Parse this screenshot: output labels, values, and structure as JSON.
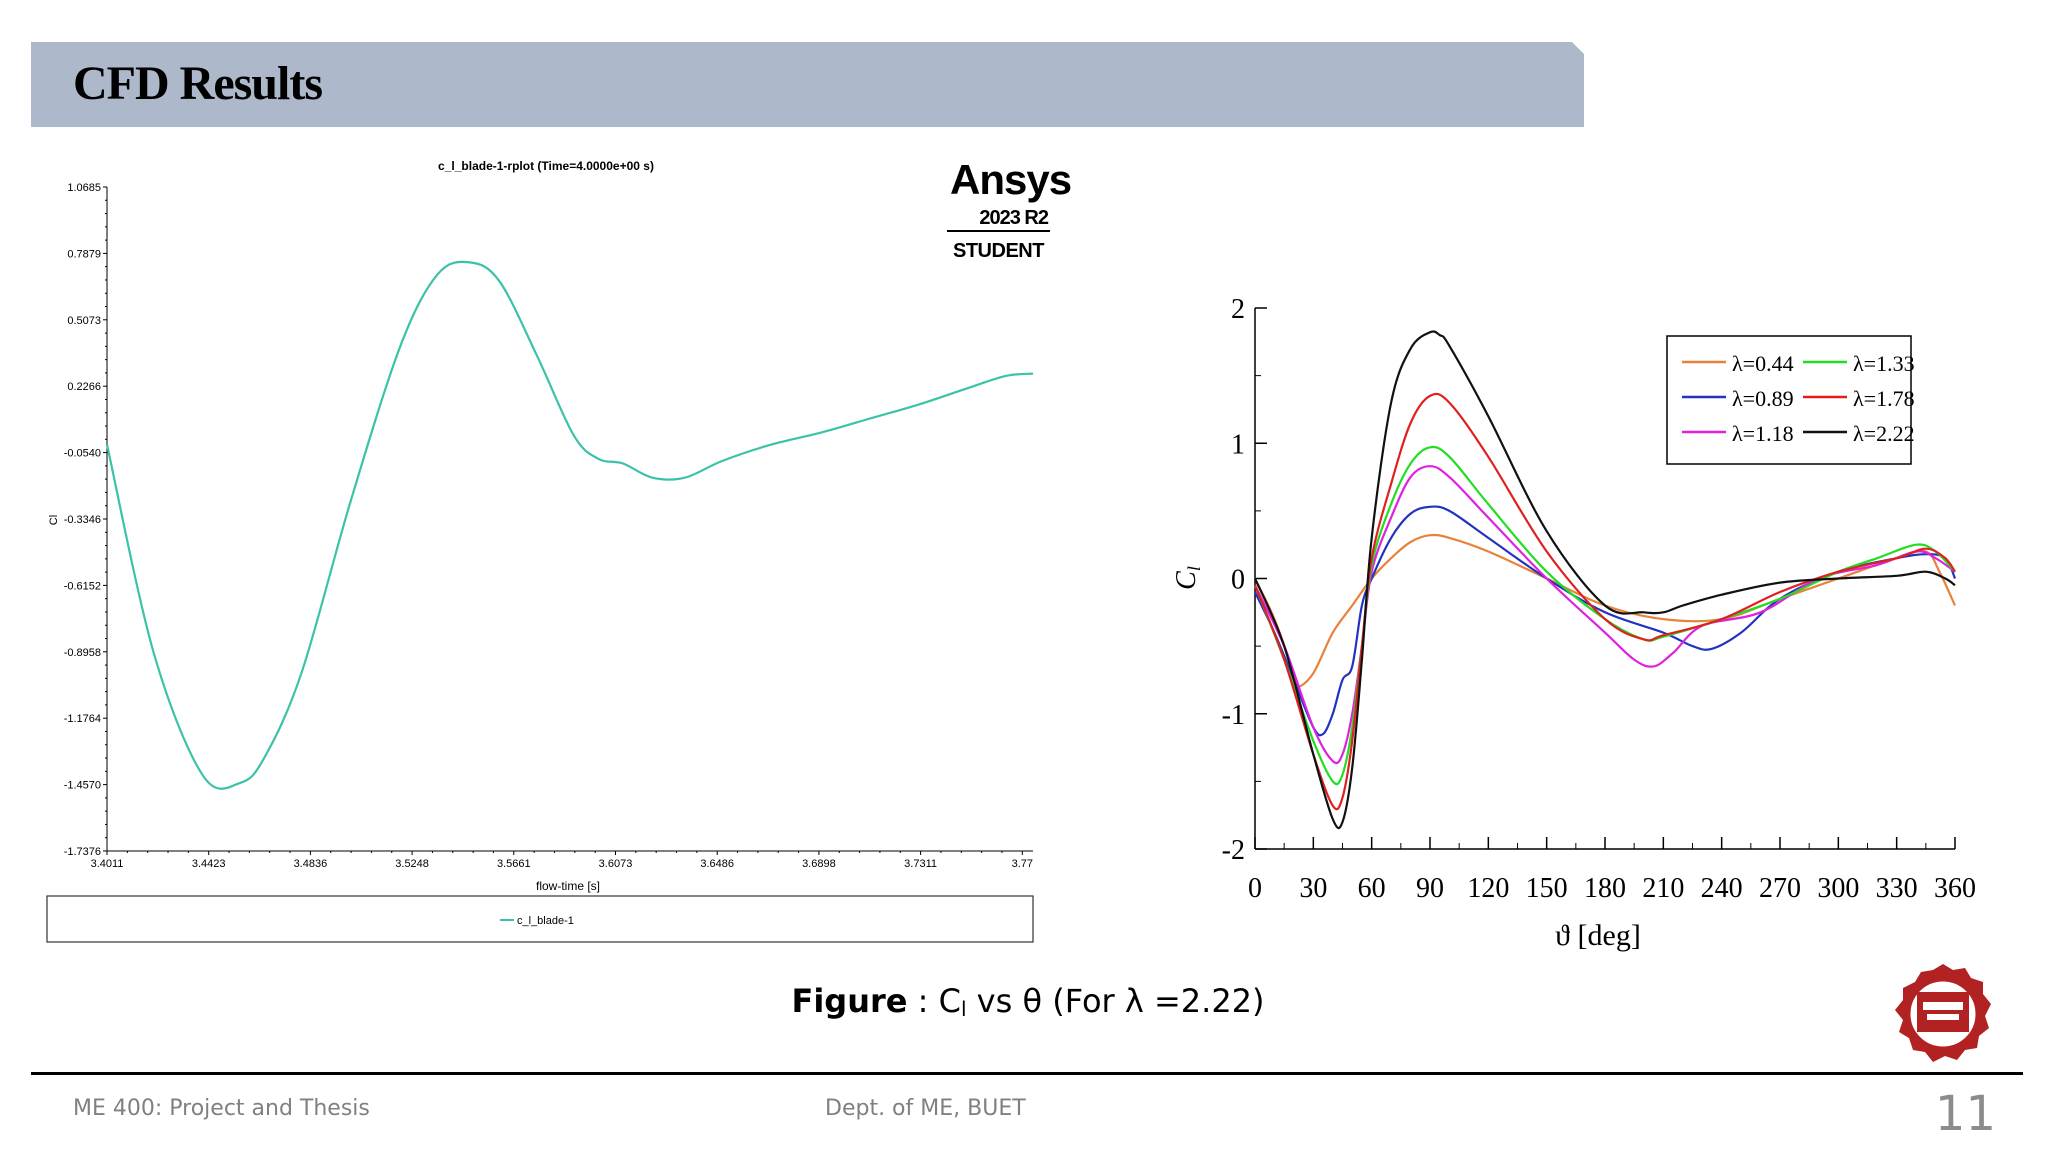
{
  "slide": {
    "title": "CFD Results",
    "caption_prefix": "Figure",
    "caption_rest": " : C",
    "caption_sub": "l",
    "caption_tail": "  vs θ  (For  λ =2.22)",
    "footer_left": "ME 400: Project and Thesis",
    "footer_center": "Dept. of ME, BUET",
    "page_number": "11"
  },
  "ansys": {
    "logo": "Ansys",
    "version": "2023 R2",
    "edition": "STUDENT"
  },
  "chart_data": [
    {
      "type": "line",
      "title": "c_l_blade-1-rplot (Time=4.0000e+00 s)",
      "xlabel": "flow-time [s]",
      "ylabel": "Cl",
      "xticks": [
        "3.4011",
        "3.4423",
        "3.4836",
        "3.5248",
        "3.5661",
        "3.6073",
        "3.6486",
        "3.6898",
        "3.7311",
        "3.77"
      ],
      "yticks": [
        "1.0685",
        "0.7879",
        "0.5073",
        "0.2266",
        "-0.0540",
        "-0.3346",
        "-0.6152",
        "-0.8958",
        "-1.1764",
        "-1.4570",
        "-1.7376"
      ],
      "xlim": [
        3.4011,
        3.776
      ],
      "ylim": [
        -1.7376,
        1.0685
      ],
      "legend_position": "bottom",
      "series": [
        {
          "name": "c_l_blade-1",
          "color": "#3cc2a8",
          "x": [
            3.4011,
            3.42,
            3.44,
            3.455,
            3.465,
            3.48,
            3.5,
            3.52,
            3.535,
            3.548,
            3.56,
            3.575,
            3.59,
            3.6,
            3.61,
            3.622,
            3.635,
            3.65,
            3.67,
            3.69,
            3.71,
            3.73,
            3.75,
            3.765,
            3.776
          ],
          "y": [
            -0.02,
            -0.9,
            -1.42,
            -1.45,
            -1.34,
            -0.98,
            -0.25,
            0.4,
            0.7,
            0.75,
            0.67,
            0.36,
            0.02,
            -0.08,
            -0.1,
            -0.16,
            -0.16,
            -0.09,
            -0.02,
            0.03,
            0.09,
            0.15,
            0.22,
            0.27,
            0.28
          ]
        }
      ]
    },
    {
      "type": "line",
      "title": "",
      "xlabel": "ϑ [deg]",
      "ylabel": "Cl",
      "xticks": [
        "0",
        "30",
        "60",
        "90",
        "120",
        "150",
        "180",
        "210",
        "240",
        "270",
        "300",
        "330",
        "360"
      ],
      "yticks": [
        "2",
        "1",
        "0",
        "-1",
        "-2"
      ],
      "xlim": [
        0,
        360
      ],
      "ylim": [
        -2,
        2
      ],
      "legend_position": "top-right",
      "series": [
        {
          "name": "λ=0.44",
          "color": "#e8823a",
          "x": [
            0,
            10,
            20,
            22,
            30,
            40,
            50,
            60,
            70,
            80,
            90,
            100,
            120,
            150,
            180,
            210,
            240,
            270,
            300,
            330,
            345,
            352,
            360
          ],
          "y": [
            0,
            -0.3,
            -0.7,
            -0.8,
            -0.7,
            -0.4,
            -0.2,
            0,
            0.15,
            0.27,
            0.32,
            0.3,
            0.2,
            0.0,
            -0.2,
            -0.3,
            -0.3,
            -0.15,
            0.0,
            0.15,
            0.2,
            0.05,
            -0.2
          ]
        },
        {
          "name": "λ=0.89",
          "color": "#2233c0",
          "x": [
            0,
            10,
            20,
            30,
            35,
            40,
            45,
            50,
            55,
            60,
            70,
            80,
            90,
            100,
            120,
            150,
            180,
            210,
            225,
            235,
            250,
            270,
            300,
            330,
            345,
            355,
            360
          ],
          "y": [
            -0.1,
            -0.4,
            -0.75,
            -1.1,
            -1.15,
            -1.0,
            -0.75,
            -0.65,
            -0.2,
            0,
            0.3,
            0.48,
            0.53,
            0.5,
            0.3,
            0.0,
            -0.25,
            -0.4,
            -0.5,
            -0.52,
            -0.4,
            -0.15,
            0.05,
            0.15,
            0.18,
            0.15,
            0.0
          ]
        },
        {
          "name": "λ=1.18",
          "color": "#e020e0",
          "x": [
            0,
            15,
            30,
            40,
            45,
            50,
            55,
            60,
            70,
            80,
            90,
            100,
            120,
            150,
            180,
            195,
            205,
            215,
            230,
            260,
            290,
            320,
            340,
            350,
            360
          ],
          "y": [
            -0.05,
            -0.5,
            -1.1,
            -1.35,
            -1.3,
            -1.0,
            -0.5,
            0.05,
            0.45,
            0.75,
            0.83,
            0.75,
            0.45,
            0.0,
            -0.4,
            -0.6,
            -0.65,
            -0.55,
            -0.35,
            -0.25,
            0.0,
            0.1,
            0.2,
            0.15,
            0.05
          ]
        },
        {
          "name": "λ=1.33",
          "color": "#22dd22",
          "x": [
            0,
            15,
            30,
            40,
            45,
            50,
            55,
            60,
            70,
            80,
            90,
            100,
            120,
            150,
            180,
            200,
            210,
            240,
            270,
            300,
            320,
            340,
            350,
            360
          ],
          "y": [
            -0.05,
            -0.6,
            -1.2,
            -1.5,
            -1.45,
            -1.1,
            -0.5,
            0.1,
            0.55,
            0.85,
            0.97,
            0.9,
            0.55,
            0.05,
            -0.3,
            -0.45,
            -0.43,
            -0.3,
            -0.15,
            0.05,
            0.15,
            0.25,
            0.2,
            0.05
          ]
        },
        {
          "name": "λ=1.78",
          "color": "#e02020",
          "x": [
            0,
            15,
            30,
            40,
            45,
            50,
            55,
            60,
            70,
            80,
            90,
            100,
            120,
            150,
            180,
            200,
            210,
            240,
            270,
            300,
            330,
            345,
            355,
            360
          ],
          "y": [
            -0.05,
            -0.6,
            -1.3,
            -1.68,
            -1.62,
            -1.2,
            -0.5,
            0.15,
            0.7,
            1.15,
            1.35,
            1.3,
            0.9,
            0.2,
            -0.3,
            -0.45,
            -0.42,
            -0.3,
            -0.1,
            0.05,
            0.15,
            0.22,
            0.15,
            0.05
          ]
        },
        {
          "name": "λ=2.22",
          "color": "#111111",
          "x": [
            0,
            15,
            30,
            40,
            45,
            50,
            55,
            60,
            70,
            80,
            90,
            95,
            100,
            120,
            150,
            180,
            200,
            210,
            220,
            240,
            270,
            300,
            330,
            345,
            355,
            360
          ],
          "y": [
            0,
            -0.5,
            -1.3,
            -1.78,
            -1.8,
            -1.4,
            -0.6,
            0.3,
            1.3,
            1.7,
            1.82,
            1.8,
            1.72,
            1.2,
            0.35,
            -0.2,
            -0.25,
            -0.25,
            -0.2,
            -0.12,
            -0.03,
            0.0,
            0.02,
            0.05,
            0.0,
            -0.05
          ]
        }
      ]
    }
  ],
  "icons": {
    "emblem": "buet-logo-icon"
  }
}
